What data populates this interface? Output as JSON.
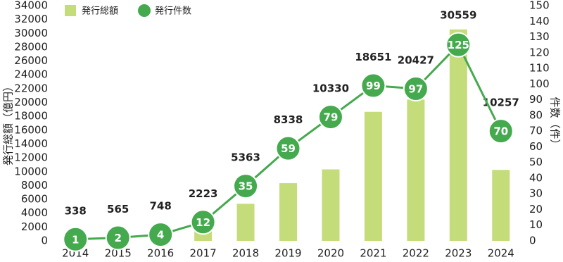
{
  "chart_data": {
    "type": "combo",
    "y_label": "発行総額（億円）",
    "y2_label": "件数（件）",
    "categories": [
      "2014",
      "2015",
      "2016",
      "2017",
      "2018",
      "2019",
      "2020",
      "2021",
      "2022",
      "2023",
      "2024"
    ],
    "series": [
      {
        "name": "発行総額",
        "type": "bar",
        "color": "#c5dc7a",
        "values": [
          338,
          565,
          748,
          2223,
          5363,
          8338,
          10330,
          18651,
          20427,
          30559,
          10257
        ]
      },
      {
        "name": "発行件数",
        "type": "line",
        "axis": "y2",
        "color": "#45a94e",
        "values": [
          1,
          2,
          4,
          12,
          35,
          59,
          79,
          99,
          97,
          125,
          70
        ]
      }
    ],
    "ylim": [
      0,
      34000
    ],
    "yticks": [
      0,
      2000,
      4000,
      6000,
      8000,
      10000,
      12000,
      14000,
      16000,
      18000,
      20000,
      22000,
      24000,
      26000,
      28000,
      30000,
      32000,
      34000
    ],
    "y2lim": [
      0,
      150
    ],
    "y2ticks": [
      0,
      10,
      20,
      30,
      40,
      50,
      60,
      70,
      80,
      90,
      100,
      110,
      120,
      130,
      140,
      150
    ],
    "legend": "top-left",
    "grid": false
  }
}
